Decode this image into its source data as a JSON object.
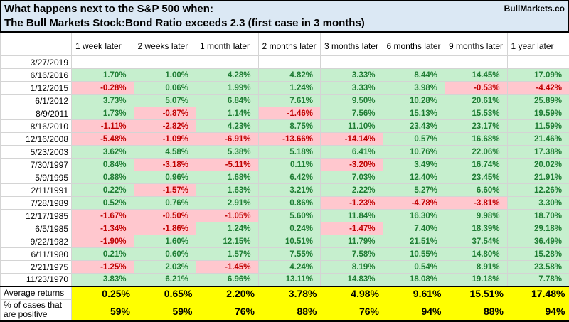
{
  "header": {
    "title_line1": "What happens next to the S&P 500 when:",
    "title_line2": "The Bull Markets Stock:Bond Ratio exceeds 2.3 (first case in 3 months)",
    "brand": "BullMarkets.co"
  },
  "colors": {
    "title_bg": "#dbe8f4",
    "grid_line": "#d4d4d4",
    "positive_bg": "#c6efce",
    "positive_text": "#1e7c33",
    "negative_bg": "#ffc7ce",
    "negative_text": "#c00000",
    "summary_bg": "#ffff00"
  },
  "table": {
    "column_headers": [
      "",
      "1 week later",
      "2 weeks later",
      "1 month later",
      "2 months later",
      "3 months later",
      "6 months later",
      "9 months later",
      "1 year later"
    ],
    "rows": [
      {
        "date": "3/27/2019",
        "values": [
          "",
          "",
          "",
          "",
          "",
          "",
          "",
          ""
        ]
      },
      {
        "date": "6/16/2016",
        "values": [
          "1.70%",
          "1.00%",
          "4.28%",
          "4.82%",
          "3.33%",
          "8.44%",
          "14.45%",
          "17.09%"
        ]
      },
      {
        "date": "1/12/2015",
        "values": [
          "-0.28%",
          "0.06%",
          "1.99%",
          "1.24%",
          "3.33%",
          "3.98%",
          "-0.53%",
          "-4.42%"
        ]
      },
      {
        "date": "6/1/2012",
        "values": [
          "3.73%",
          "5.07%",
          "6.84%",
          "7.61%",
          "9.50%",
          "10.28%",
          "20.61%",
          "25.89%"
        ]
      },
      {
        "date": "8/9/2011",
        "values": [
          "1.73%",
          "-0.87%",
          "1.14%",
          "-1.46%",
          "7.56%",
          "15.13%",
          "15.53%",
          "19.59%"
        ]
      },
      {
        "date": "8/16/2010",
        "values": [
          "-1.11%",
          "-2.82%",
          "4.23%",
          "8.75%",
          "11.10%",
          "23.43%",
          "23.17%",
          "11.59%"
        ]
      },
      {
        "date": "12/16/2008",
        "values": [
          "-5.48%",
          "-1.09%",
          "-6.91%",
          "-13.66%",
          "-14.14%",
          "0.57%",
          "16.68%",
          "21.46%"
        ]
      },
      {
        "date": "5/23/2003",
        "values": [
          "3.62%",
          "4.58%",
          "5.38%",
          "5.18%",
          "6.41%",
          "10.76%",
          "22.06%",
          "17.38%"
        ]
      },
      {
        "date": "7/30/1997",
        "values": [
          "0.84%",
          "-3.18%",
          "-5.11%",
          "0.11%",
          "-3.20%",
          "3.49%",
          "16.74%",
          "20.02%"
        ]
      },
      {
        "date": "5/9/1995",
        "values": [
          "0.88%",
          "0.96%",
          "1.68%",
          "6.42%",
          "7.03%",
          "12.40%",
          "23.45%",
          "21.91%"
        ]
      },
      {
        "date": "2/11/1991",
        "values": [
          "0.22%",
          "-1.57%",
          "1.63%",
          "3.21%",
          "2.22%",
          "5.27%",
          "6.60%",
          "12.26%"
        ]
      },
      {
        "date": "7/28/1989",
        "values": [
          "0.52%",
          "0.76%",
          "2.91%",
          "0.86%",
          "-1.23%",
          "-4.78%",
          "-3.81%",
          "3.30%"
        ]
      },
      {
        "date": "12/17/1985",
        "values": [
          "-1.67%",
          "-0.50%",
          "-1.05%",
          "5.60%",
          "11.84%",
          "16.30%",
          "9.98%",
          "18.70%"
        ]
      },
      {
        "date": "6/5/1985",
        "values": [
          "-1.34%",
          "-1.86%",
          "1.24%",
          "0.24%",
          "-1.47%",
          "7.40%",
          "18.39%",
          "29.18%"
        ]
      },
      {
        "date": "9/22/1982",
        "values": [
          "-1.90%",
          "1.60%",
          "12.15%",
          "10.51%",
          "11.79%",
          "21.51%",
          "37.54%",
          "36.49%"
        ]
      },
      {
        "date": "6/11/1980",
        "values": [
          "0.21%",
          "0.60%",
          "1.57%",
          "7.55%",
          "7.58%",
          "10.55%",
          "14.80%",
          "15.28%"
        ]
      },
      {
        "date": "2/21/1975",
        "values": [
          "-1.25%",
          "2.03%",
          "-1.45%",
          "4.24%",
          "8.19%",
          "0.54%",
          "8.91%",
          "23.58%"
        ]
      },
      {
        "date": "11/23/1970",
        "values": [
          "3.83%",
          "6.21%",
          "6.96%",
          "13.11%",
          "14.83%",
          "18.08%",
          "19.18%",
          "7.78%"
        ]
      }
    ]
  },
  "summary": {
    "average_label": "Average returns",
    "average_values": [
      "0.25%",
      "0.65%",
      "2.20%",
      "3.78%",
      "4.98%",
      "9.61%",
      "15.51%",
      "17.48%"
    ],
    "positive_label_line1": "% of cases that",
    "positive_label_line2": "are positive",
    "positive_values": [
      "59%",
      "59%",
      "76%",
      "88%",
      "76%",
      "94%",
      "88%",
      "94%"
    ]
  }
}
